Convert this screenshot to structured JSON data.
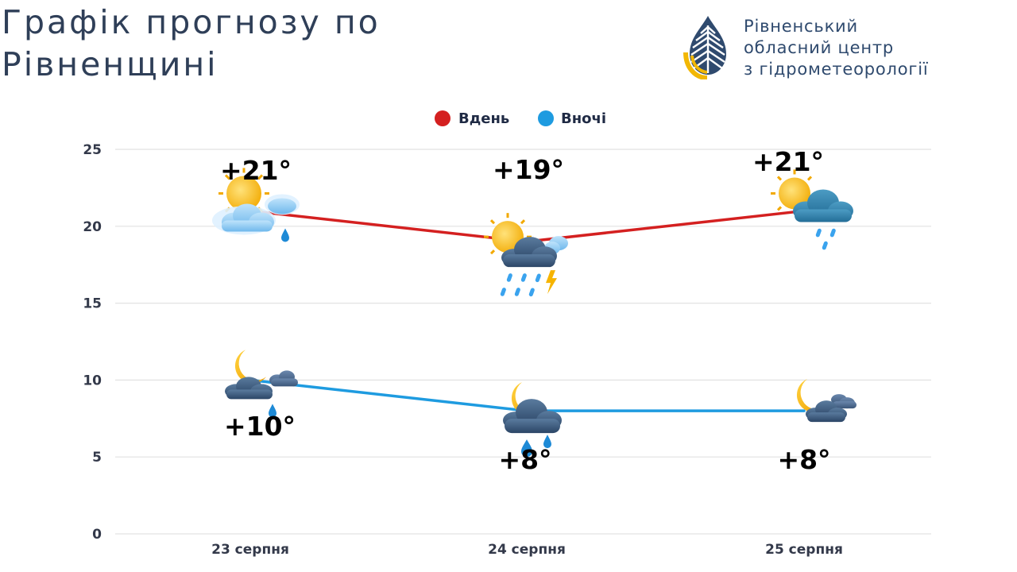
{
  "header": {
    "title_line1": "Графік прогнозу по",
    "title_line2": "Рівненщині"
  },
  "logo": {
    "line1": "Рівненський",
    "line2": "обласний центр",
    "line3": "з гідрометеорології",
    "icon": "drop-logo-icon"
  },
  "colors": {
    "day": "#d42020",
    "night": "#1e9be0",
    "grid": "#e2e2e2",
    "title": "#2f3f58"
  },
  "chart_data": {
    "type": "line",
    "categories": [
      "23 серпня",
      "24 серпня",
      "25 серпня"
    ],
    "series": [
      {
        "name": "Вдень",
        "values": [
          21,
          19,
          21
        ],
        "labels": [
          "+21°",
          "+19°",
          "+21°"
        ],
        "icons": [
          "sun-cloud-drizzle-icon",
          "sun-thunderstorm-rain-icon",
          "sun-cloud-rain-icon"
        ]
      },
      {
        "name": "Вночі",
        "values": [
          10,
          8,
          8
        ],
        "labels": [
          "+10°",
          "+8°",
          "+8°"
        ],
        "icons": [
          "moon-cloud-drizzle-icon",
          "moon-cloud-rain-icon",
          "moon-cloud-icon"
        ]
      }
    ],
    "y_ticks": [
      "0",
      "5",
      "10",
      "15",
      "20",
      "25"
    ],
    "ylim": [
      0,
      25
    ],
    "grid": true,
    "legend": "top-center"
  }
}
